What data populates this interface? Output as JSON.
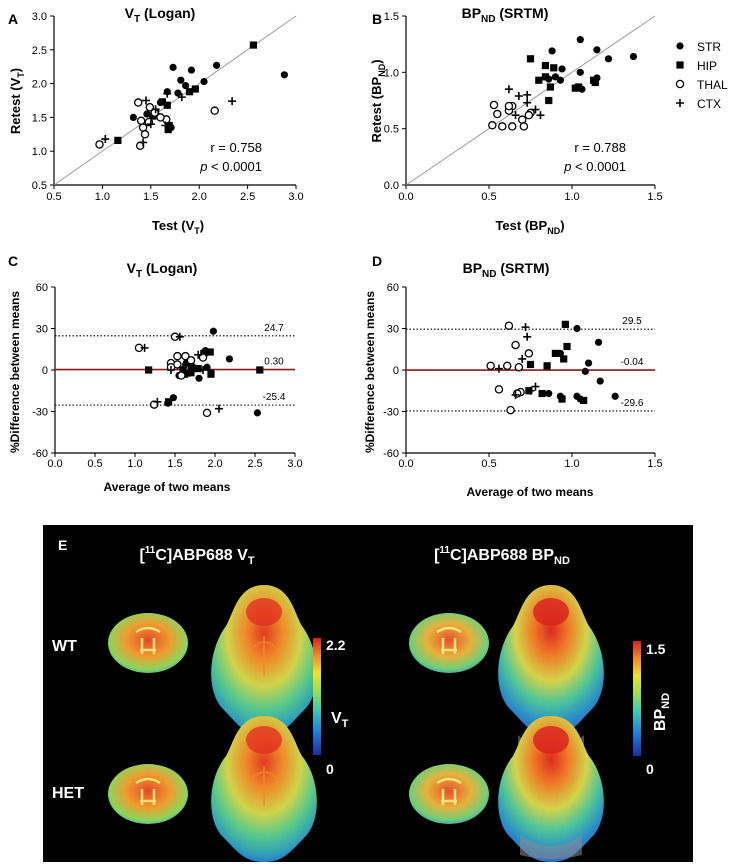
{
  "legend": [
    {
      "marker": "filled-circle",
      "label": "STR"
    },
    {
      "marker": "filled-square",
      "label": "HIP"
    },
    {
      "marker": "open-circle",
      "label": "THAL"
    },
    {
      "marker": "plus",
      "label": "CTX"
    }
  ],
  "chart_data": [
    {
      "panel": "A",
      "type": "scatter",
      "title": "V_T (Logan)",
      "title_main": "V",
      "title_sub": "T",
      "title_rest": " (Logan)",
      "xlabel_main": "Test (V",
      "xlabel_sub": "T",
      "xlabel_rest": ")",
      "ylabel_main": "Retest (V",
      "ylabel_sub": "T",
      "ylabel_rest": ")",
      "xlim": [
        0.5,
        3.0
      ],
      "ylim": [
        0.5,
        3.0
      ],
      "xticks": [
        "0.5",
        "1.0",
        "1.5",
        "2.0",
        "2.5",
        "3.0"
      ],
      "yticks": [
        "0.5",
        "1.0",
        "1.5",
        "2.0",
        "2.5",
        "3.0"
      ],
      "identity_line": true,
      "stat_r": "r = 0.758",
      "stat_p_italic": "p",
      "stat_p_rest": " < 0.0001",
      "series": [
        {
          "name": "STR",
          "points": [
            [
              1.73,
              2.24
            ],
            [
              1.92,
              2.2
            ],
            [
              2.18,
              2.27
            ],
            [
              1.81,
              2.05
            ],
            [
              1.86,
              1.97
            ],
            [
              2.05,
              2.03
            ],
            [
              1.67,
              1.88
            ],
            [
              1.78,
              1.86
            ],
            [
              1.6,
              1.72
            ],
            [
              1.71,
              1.35
            ],
            [
              1.46,
              1.55
            ],
            [
              1.32,
              1.5
            ],
            [
              2.88,
              2.13
            ]
          ]
        },
        {
          "name": "HIP",
          "points": [
            [
              2.56,
              2.57
            ],
            [
              1.96,
              1.92
            ],
            [
              1.9,
              1.88
            ],
            [
              1.62,
              1.73
            ],
            [
              1.67,
              1.68
            ],
            [
              1.55,
              1.58
            ],
            [
              1.52,
              1.52
            ],
            [
              1.69,
              1.38
            ],
            [
              1.68,
              1.32
            ],
            [
              1.16,
              1.16
            ]
          ]
        },
        {
          "name": "THAL",
          "points": [
            [
              1.37,
              1.72
            ],
            [
              1.49,
              1.65
            ],
            [
              1.54,
              1.57
            ],
            [
              1.4,
              1.45
            ],
            [
              1.48,
              1.43
            ],
            [
              1.66,
              1.47
            ],
            [
              1.42,
              1.35
            ],
            [
              1.6,
              1.5
            ],
            [
              1.39,
              1.08
            ],
            [
              0.97,
              1.1
            ],
            [
              2.16,
              1.6
            ],
            [
              1.44,
              1.25
            ]
          ]
        },
        {
          "name": "CTX",
          "points": [
            [
              1.45,
              1.75
            ],
            [
              1.67,
              1.85
            ],
            [
              1.55,
              1.62
            ],
            [
              1.82,
              1.8
            ],
            [
              1.5,
              1.4
            ],
            [
              1.65,
              1.38
            ],
            [
              2.34,
              1.74
            ],
            [
              1.03,
              1.18
            ],
            [
              1.42,
              1.13
            ]
          ]
        }
      ]
    },
    {
      "panel": "B",
      "type": "scatter",
      "title": "BP_ND (SRTM)",
      "title_main": "BP",
      "title_sub": "ND",
      "title_rest": " (SRTM)",
      "xlabel_main": "Test (BP",
      "xlabel_sub": "ND",
      "xlabel_rest": ")",
      "ylabel_main": "Retest (BP",
      "ylabel_sub": "ND",
      "ylabel_rest": ")",
      "xlim": [
        0.0,
        1.5
      ],
      "ylim": [
        0.0,
        1.5
      ],
      "xticks": [
        "0.0",
        "0.5",
        "1.0",
        "1.5"
      ],
      "yticks": [
        "0.0",
        "0.5",
        "1.0",
        "1.5"
      ],
      "identity_line": true,
      "stat_r": "r = 0.788",
      "stat_p_italic": "p",
      "stat_p_rest": " < 0.0001",
      "series": [
        {
          "name": "STR",
          "points": [
            [
              1.05,
              1.29
            ],
            [
              0.88,
              1.19
            ],
            [
              1.15,
              1.2
            ],
            [
              0.94,
              1.03
            ],
            [
              0.9,
              0.96
            ],
            [
              1.05,
              1.0
            ],
            [
              0.86,
              0.94
            ],
            [
              0.93,
              0.93
            ],
            [
              1.22,
              1.12
            ],
            [
              1.37,
              1.14
            ],
            [
              1.06,
              0.85
            ],
            [
              1.15,
              0.95
            ]
          ]
        },
        {
          "name": "HIP",
          "points": [
            [
              0.75,
              1.12
            ],
            [
              0.84,
              1.06
            ],
            [
              0.89,
              1.04
            ],
            [
              0.84,
              0.96
            ],
            [
              0.8,
              0.93
            ],
            [
              0.87,
              0.87
            ],
            [
              1.04,
              0.87
            ],
            [
              1.13,
              0.93
            ],
            [
              1.02,
              0.86
            ],
            [
              0.86,
              0.75
            ],
            [
              1.14,
              0.91
            ]
          ]
        },
        {
          "name": "THAL",
          "points": [
            [
              0.53,
              0.71
            ],
            [
              0.64,
              0.7
            ],
            [
              0.55,
              0.63
            ],
            [
              0.62,
              0.66
            ],
            [
              0.75,
              0.64
            ],
            [
              0.7,
              0.58
            ],
            [
              0.52,
              0.53
            ],
            [
              0.58,
              0.52
            ],
            [
              0.64,
              0.52
            ],
            [
              0.74,
              0.62
            ],
            [
              0.71,
              0.52
            ],
            [
              0.62,
              0.7
            ]
          ]
        },
        {
          "name": "CTX",
          "points": [
            [
              0.62,
              0.85
            ],
            [
              0.68,
              0.79
            ],
            [
              0.73,
              0.73
            ],
            [
              0.73,
              0.8
            ],
            [
              0.66,
              0.62
            ],
            [
              0.81,
              0.62
            ],
            [
              0.78,
              0.67
            ]
          ]
        }
      ]
    },
    {
      "panel": "C",
      "type": "scatter",
      "subtype": "bland-altman",
      "title": "V_T (Logan)",
      "title_main": "V",
      "title_sub": "T",
      "title_rest": " (Logan)",
      "xlabel": "Average of two means",
      "ylabel": "%Difference between means",
      "xlim": [
        0.0,
        3.0
      ],
      "ylim": [
        -60,
        60
      ],
      "xticks": [
        "0.0",
        "0.5",
        "1.0",
        "1.5",
        "2.0",
        "2.5",
        "3.0"
      ],
      "yticks": [
        "60",
        "30",
        "0",
        "-30",
        "-60"
      ],
      "ref_lines": [
        {
          "value": 24.7,
          "label": "24.7",
          "style": "dotted"
        },
        {
          "value": 0.3,
          "label": "0.30",
          "style": "solid"
        },
        {
          "value": -25.4,
          "label": "-25.4",
          "style": "dotted"
        }
      ],
      "series": [
        {
          "name": "STR",
          "points": [
            [
              1.98,
              28
            ],
            [
              1.88,
              14
            ],
            [
              2.18,
              8
            ],
            [
              1.64,
              5
            ],
            [
              1.9,
              2
            ],
            [
              1.55,
              -4
            ],
            [
              1.48,
              -20
            ],
            [
              1.41,
              -24
            ],
            [
              2.53,
              -31
            ],
            [
              1.95,
              -2
            ],
            [
              1.8,
              -6
            ],
            [
              1.7,
              2
            ]
          ]
        },
        {
          "name": "HIP",
          "points": [
            [
              1.94,
              13
            ],
            [
              1.86,
              12
            ],
            [
              1.71,
              2
            ],
            [
              1.6,
              0
            ],
            [
              1.62,
              -3
            ],
            [
              1.7,
              -2
            ],
            [
              1.79,
              1
            ],
            [
              1.95,
              -3
            ],
            [
              1.17,
              0
            ],
            [
              1.42,
              -23
            ],
            [
              2.56,
              0
            ]
          ]
        },
        {
          "name": "THAL",
          "points": [
            [
              1.05,
              16
            ],
            [
              1.5,
              24
            ],
            [
              1.63,
              10
            ],
            [
              1.53,
              10
            ],
            [
              1.45,
              5
            ],
            [
              1.58,
              -4
            ],
            [
              1.7,
              7
            ],
            [
              1.53,
              4
            ],
            [
              1.24,
              -25
            ],
            [
              1.9,
              -31
            ],
            [
              1.85,
              9
            ],
            [
              1.45,
              2
            ]
          ]
        },
        {
          "name": "CTX",
          "points": [
            [
              1.12,
              16
            ],
            [
              1.56,
              24
            ],
            [
              1.79,
              11
            ],
            [
              1.6,
              2
            ],
            [
              1.45,
              0
            ],
            [
              1.68,
              -2
            ],
            [
              1.28,
              -23
            ],
            [
              2.05,
              -28
            ],
            [
              1.85,
              0
            ]
          ]
        }
      ]
    },
    {
      "panel": "D",
      "type": "scatter",
      "subtype": "bland-altman",
      "title": "BP_ND (SRTM)",
      "title_main": "BP",
      "title_sub": "ND",
      "title_rest": " (SRTM)",
      "xlabel": "Average of two means",
      "ylabel": "%Difference between means",
      "xlim": [
        0.0,
        1.5
      ],
      "ylim": [
        -60,
        60
      ],
      "xticks": [
        "0.0",
        "0.5",
        "1.0",
        "1.5"
      ],
      "yticks": [
        "60",
        "30",
        "0",
        "-30",
        "-60"
      ],
      "ref_lines": [
        {
          "value": 29.5,
          "label": "29.5",
          "style": "dotted"
        },
        {
          "value": -0.04,
          "label": "-0.04",
          "style": "solid"
        },
        {
          "value": -29.6,
          "label": "-29.6",
          "style": "dotted"
        }
      ],
      "series": [
        {
          "name": "STR",
          "points": [
            [
              1.03,
              30
            ],
            [
              1.16,
              20
            ],
            [
              1.17,
              -8
            ],
            [
              1.26,
              -19
            ],
            [
              0.93,
              -19
            ],
            [
              1.05,
              -21
            ],
            [
              1.08,
              -1
            ],
            [
              0.93,
              12
            ],
            [
              1.1,
              5
            ],
            [
              0.86,
              -17
            ],
            [
              1.03,
              -19
            ]
          ]
        },
        {
          "name": "HIP",
          "points": [
            [
              0.96,
              33
            ],
            [
              0.9,
              12
            ],
            [
              0.97,
              17
            ],
            [
              0.95,
              8
            ],
            [
              0.82,
              -17
            ],
            [
              0.94,
              -21
            ],
            [
              1.07,
              -22
            ],
            [
              0.74,
              -15
            ],
            [
              0.85,
              3
            ],
            [
              0.75,
              4
            ]
          ]
        },
        {
          "name": "THAL",
          "points": [
            [
              0.62,
              32
            ],
            [
              0.66,
              18
            ],
            [
              0.56,
              -14
            ],
            [
              0.51,
              3
            ],
            [
              0.61,
              3
            ],
            [
              0.69,
              -16
            ],
            [
              0.67,
              -17
            ],
            [
              0.63,
              -29
            ],
            [
              0.74,
              12
            ],
            [
              0.68,
              2
            ]
          ]
        },
        {
          "name": "CTX",
          "points": [
            [
              0.72,
              31
            ],
            [
              0.56,
              1
            ],
            [
              0.7,
              8
            ],
            [
              0.66,
              -18
            ],
            [
              0.75,
              -15
            ],
            [
              0.78,
              -12
            ],
            [
              0.73,
              24
            ]
          ]
        }
      ]
    }
  ],
  "panel_e": {
    "label": "E",
    "left_title_pre": "[",
    "left_title_sup": "11",
    "left_title_mid": "C]ABP688 V",
    "left_title_sub": "T",
    "right_title_pre": "[",
    "right_title_sup": "11",
    "right_title_mid": "C]ABP688 BP",
    "right_title_sub": "ND",
    "row_labels": [
      "WT",
      "HET"
    ],
    "colorbar_left": {
      "max": "2.2",
      "min": "0",
      "label_main": "V",
      "label_sub": "T"
    },
    "colorbar_right": {
      "max": "1.5",
      "min": "0",
      "label_main": "BP",
      "label_sub": "ND"
    }
  },
  "colors": {
    "identity_line": "#9a9a9a",
    "mean_line": "#8b1a1a",
    "marker": "#000000",
    "panel_e_bg": "#000000"
  }
}
